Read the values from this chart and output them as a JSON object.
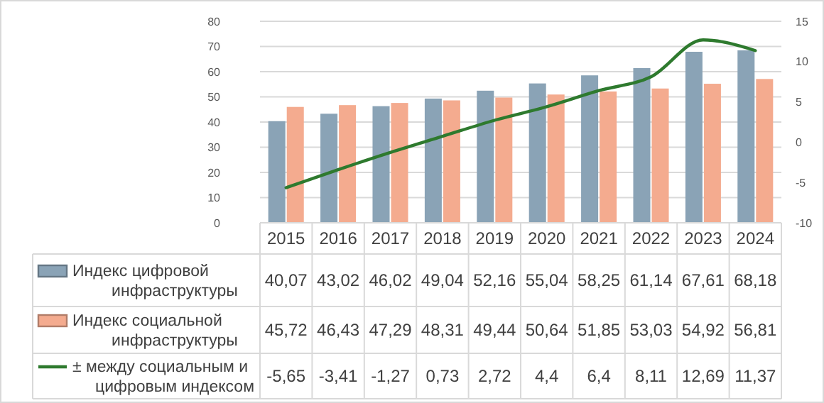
{
  "chart_data": {
    "type": "bar",
    "categories": [
      "2015",
      "2016",
      "2017",
      "2018",
      "2019",
      "2020",
      "2021",
      "2022",
      "2023",
      "2024"
    ],
    "series": [
      {
        "name": "Индекс цифровой инфраструктуры",
        "color": "#8aa3b6",
        "values": [
          40.07,
          43.02,
          46.02,
          49.04,
          52.16,
          55.04,
          58.25,
          61.14,
          67.61,
          68.18
        ],
        "value_labels": [
          "40,07",
          "43,02",
          "46,02",
          "49,04",
          "52,16",
          "55,04",
          "58,25",
          "61,14",
          "67,61",
          "68,18"
        ]
      },
      {
        "name": "Индекс социальной инфраструктуры",
        "color": "#f4ab8f",
        "values": [
          45.72,
          46.43,
          47.29,
          48.31,
          49.44,
          50.64,
          51.85,
          53.03,
          54.92,
          56.81
        ],
        "value_labels": [
          "45,72",
          "46,43",
          "47,29",
          "48,31",
          "49,44",
          "50,64",
          "51,85",
          "53,03",
          "54,92",
          "56,81"
        ]
      },
      {
        "name": "± между социальным и цифровым индексом",
        "type": "line",
        "axis": "y2",
        "color": "#2e7a2e",
        "values": [
          -5.65,
          -3.41,
          -1.27,
          0.73,
          2.72,
          4.4,
          6.4,
          8.11,
          12.69,
          11.37
        ],
        "value_labels": [
          "-5,65",
          "-3,41",
          "-1,27",
          "0,73",
          "2,72",
          "4,4",
          "6,4",
          "8,11",
          "12,69",
          "11,37"
        ]
      }
    ],
    "ylim": [
      0,
      80
    ],
    "yticks": [
      0,
      10,
      20,
      30,
      40,
      50,
      60,
      70,
      80
    ],
    "y2lim": [
      -10,
      15
    ],
    "y2ticks": [
      -10,
      -5,
      0,
      5,
      10,
      15
    ],
    "grid": "y",
    "legend": "bottom"
  }
}
